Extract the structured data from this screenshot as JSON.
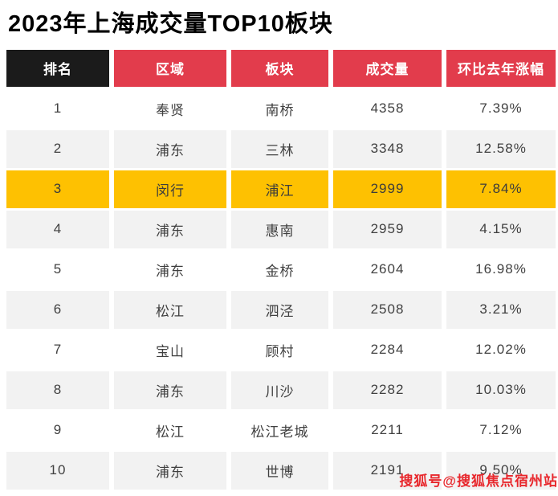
{
  "title": "2023年上海成交量TOP10板块",
  "watermark": "搜狐号@搜狐焦点宿州站",
  "colors": {
    "header_rank_bg": "#1b1b1b",
    "header_bg": "#e23c4c",
    "highlight_bg": "#fec101",
    "alt_row_bg": "#f2f2f2",
    "watermark_red": "#e8272c"
  },
  "chart_data": {
    "type": "table",
    "title": "2023年上海成交量TOP10板块",
    "columns": [
      "排名",
      "区域",
      "板块",
      "成交量",
      "环比去年涨幅"
    ],
    "rows": [
      [
        "1",
        "奉贤",
        "南桥",
        "4358",
        "7.39%"
      ],
      [
        "2",
        "浦东",
        "三林",
        "3348",
        "12.58%"
      ],
      [
        "3",
        "闵行",
        "浦江",
        "2999",
        "7.84%"
      ],
      [
        "4",
        "浦东",
        "惠南",
        "2959",
        "4.15%"
      ],
      [
        "5",
        "浦东",
        "金桥",
        "2604",
        "16.98%"
      ],
      [
        "6",
        "松江",
        "泗泾",
        "2508",
        "3.21%"
      ],
      [
        "7",
        "宝山",
        "顾村",
        "2284",
        "12.02%"
      ],
      [
        "8",
        "浦东",
        "川沙",
        "2282",
        "10.03%"
      ],
      [
        "9",
        "松江",
        "松江老城",
        "2211",
        "7.12%"
      ],
      [
        "10",
        "浦东",
        "世博",
        "2191",
        "9.50%"
      ]
    ],
    "highlighted_rank": "3",
    "layout": {
      "zebra_even_ranks": true,
      "legend": "none",
      "grid": "off"
    }
  }
}
